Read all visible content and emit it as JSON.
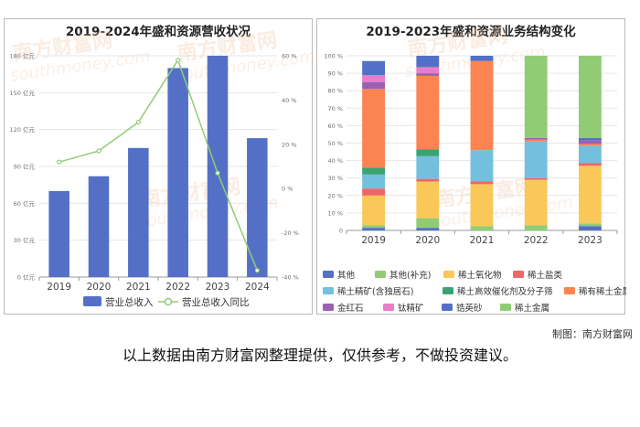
{
  "credit": "制图：南方财富网",
  "footnote": "以上数据由南方财富网整理提供，仅供参考，不做投资建议。",
  "watermark": {
    "cn": "南方财富网",
    "en": "southmoney.com"
  },
  "colors": {
    "bar": "#5470c6",
    "line": "#91cc75",
    "axis": "#999999",
    "grid": "#e6e6e6",
    "label": "#6e7079"
  },
  "chart_data": [
    {
      "type": "bar",
      "title": "2019-2024年盛和资源营收状况",
      "categories": [
        "2019",
        "2020",
        "2021",
        "2022",
        "2023",
        "2024"
      ],
      "series": [
        {
          "name": "营业总收入",
          "type": "bar",
          "axis": "left",
          "values": [
            70,
            82,
            105,
            170,
            180,
            113
          ]
        },
        {
          "name": "营业总收入同比",
          "type": "line",
          "axis": "right",
          "values": [
            12,
            17,
            30,
            58,
            7,
            -37
          ]
        }
      ],
      "y_left": {
        "ylim": [
          0,
          180
        ],
        "ticks": [
          "0 亿元",
          "30 亿元",
          "60 亿元",
          "90 亿元",
          "120 亿元",
          "150 亿元",
          "180 亿元"
        ]
      },
      "y_right": {
        "ylim": [
          -40,
          60
        ],
        "ticks": [
          "-40 %",
          "-20 %",
          "0 %",
          "20 %",
          "40 %",
          "60 %"
        ]
      },
      "grid": true,
      "legend": "bottom"
    },
    {
      "type": "bar",
      "stacked": true,
      "title": "2019-2023年盛和资源业务结构变化",
      "categories": [
        "2019",
        "2020",
        "2021",
        "2022",
        "2023"
      ],
      "ylim": [
        0,
        100
      ],
      "y_ticks": [
        "0",
        "10 %",
        "20 %",
        "30 %",
        "40 %",
        "50 %",
        "60 %",
        "70 %",
        "80 %",
        "90 %",
        "100 %"
      ],
      "series": [
        {
          "name": "其他",
          "color": "#5470c6",
          "values": [
            1.5,
            1.5,
            0,
            0,
            2.5
          ]
        },
        {
          "name": "其他(补充)",
          "color": "#91cc75",
          "values": [
            1.5,
            5.5,
            2.5,
            3,
            1.5
          ]
        },
        {
          "name": "稀土氧化物",
          "color": "#fac858",
          "values": [
            17,
            21,
            24,
            26,
            33
          ]
        },
        {
          "name": "稀土盐类",
          "color": "#ee6666",
          "values": [
            4,
            1.5,
            1.5,
            1,
            1.5
          ]
        },
        {
          "name": "稀土精矿(含独居石)",
          "color": "#73c0de",
          "values": [
            8,
            13,
            18,
            21,
            10
          ]
        },
        {
          "name": "稀土高效催化剂及分子筛",
          "color": "#3ba272",
          "values": [
            4,
            4,
            0,
            0,
            0
          ]
        },
        {
          "name": "稀有稀土金属",
          "color": "#fc8452",
          "values": [
            45,
            42,
            51,
            1,
            1
          ]
        },
        {
          "name": "金红石",
          "color": "#9a60b4",
          "values": [
            4,
            1.5,
            0,
            1,
            2
          ]
        },
        {
          "name": "钛精矿",
          "color": "#ea7ccc",
          "values": [
            4,
            3.5,
            0,
            0,
            0
          ]
        },
        {
          "name": "锆英砂",
          "color": "#5470c6",
          "values": [
            8,
            6.5,
            3,
            0,
            1.5
          ]
        },
        {
          "name": "稀土金属",
          "color": "#91cc75",
          "values": [
            0,
            0,
            0,
            47,
            47
          ]
        }
      ],
      "grid": true,
      "legend": "bottom"
    }
  ]
}
